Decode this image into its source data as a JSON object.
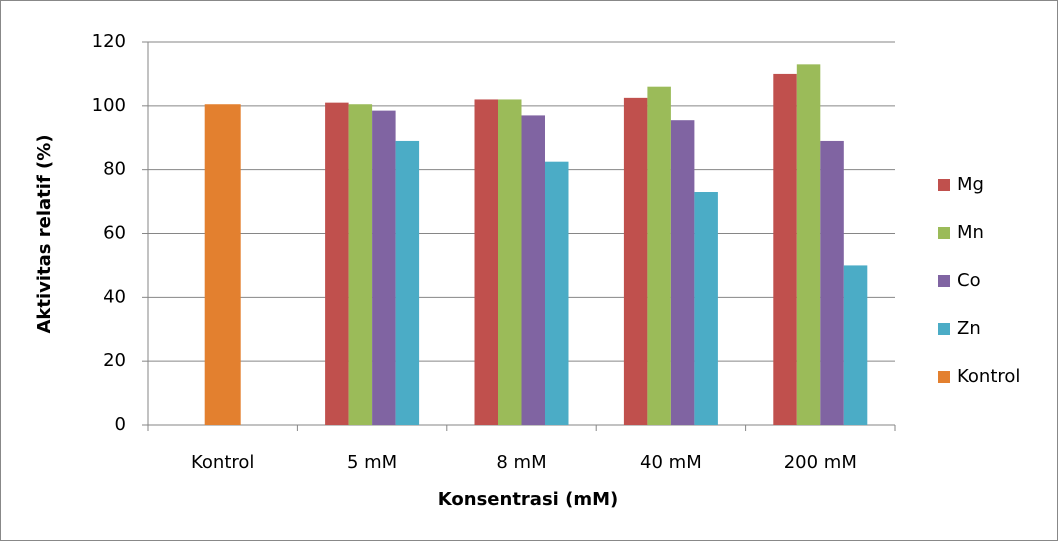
{
  "chart_data": {
    "type": "bar",
    "xlabel": "Konsentrasi (mM)",
    "ylabel": "Aktivitas relatif (%)",
    "categories": [
      "Kontrol",
      "5 mM",
      "8 mM",
      "40 mM",
      "200 mM"
    ],
    "series": [
      {
        "name": "Mg",
        "color": "#c0504d",
        "values": [
          null,
          101,
          102,
          102.5,
          110
        ]
      },
      {
        "name": "Mn",
        "color": "#9bbb59",
        "values": [
          null,
          100.5,
          102,
          106,
          113
        ]
      },
      {
        "name": "Co",
        "color": "#8064a2",
        "values": [
          null,
          98.5,
          97,
          95.5,
          89
        ]
      },
      {
        "name": "Zn",
        "color": "#4bacc6",
        "values": [
          null,
          89,
          82.5,
          73,
          50
        ]
      },
      {
        "name": "Kontrol",
        "color": "#e3802f",
        "values": [
          100.5,
          null,
          null,
          null,
          null
        ]
      }
    ],
    "ylim": [
      0,
      120
    ],
    "yticks": [
      0,
      20,
      40,
      60,
      80,
      100,
      120
    ],
    "grid": true,
    "legend": "right"
  }
}
